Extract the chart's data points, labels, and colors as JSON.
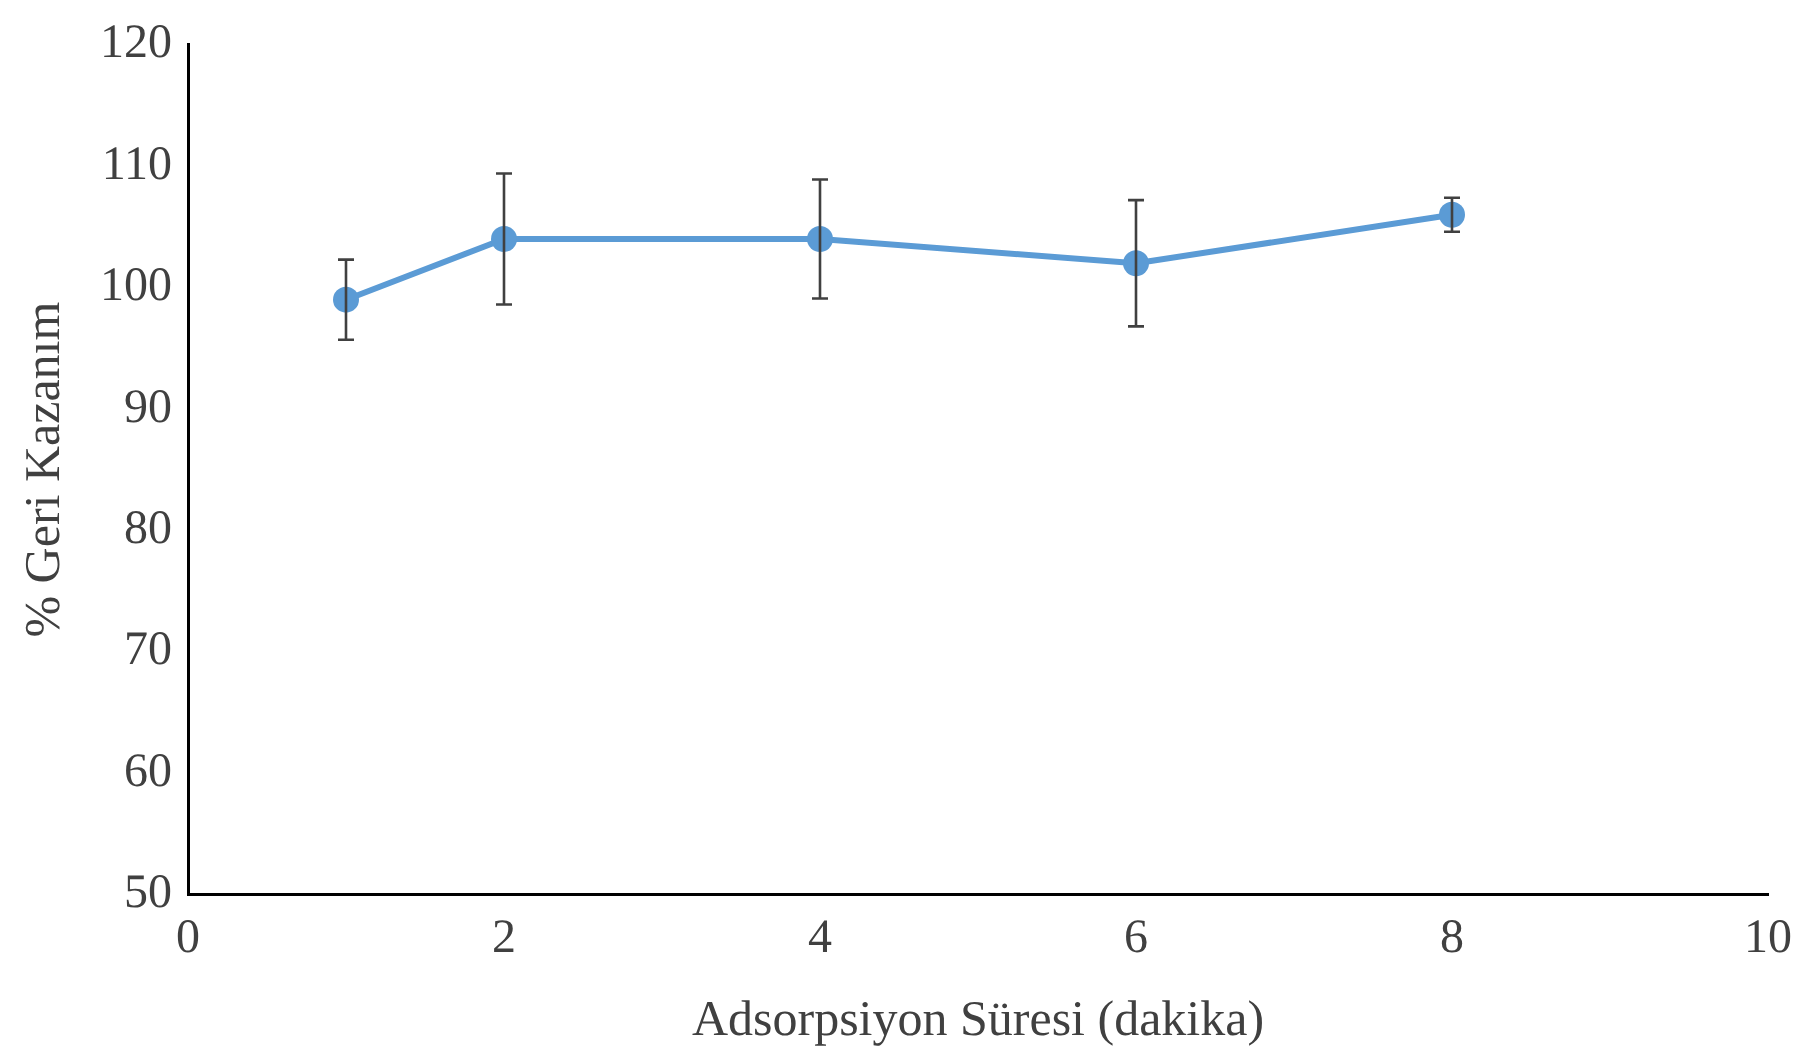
{
  "chart_data": {
    "type": "line",
    "xlabel": "Adsorpsiyon Süresi (dakika)",
    "ylabel": "% Geri Kazanım",
    "x": [
      1,
      2,
      4,
      6,
      8
    ],
    "series": [
      {
        "color": "#5b9bd5",
        "values": [
          99,
          104,
          104,
          102,
          106
        ],
        "errors": [
          3.3,
          5.4,
          4.9,
          5.2,
          1.4
        ]
      }
    ],
    "xlim": [
      0,
      10
    ],
    "xticks": [
      0,
      2,
      4,
      6,
      8,
      10
    ],
    "ylim": [
      50,
      120
    ],
    "yticks": [
      50,
      60,
      70,
      80,
      90,
      100,
      110,
      120
    ],
    "grid": false,
    "legend": false,
    "marker": "circle",
    "line_style": "solid"
  }
}
